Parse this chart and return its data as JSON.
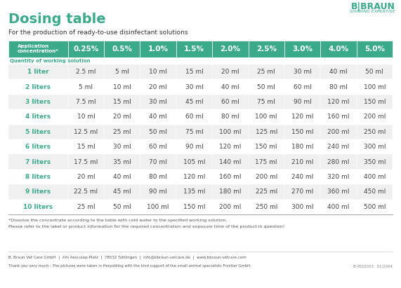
{
  "title": "Dosing table",
  "subtitle": "For the production of ready-to-use disinfectant solutions",
  "brand_name": "B|BRAUN",
  "brand_tagline": "SHARING EXPERTISE",
  "header_row": [
    "Application\nconcentration*",
    "0.25%",
    "0.5%",
    "1.0%",
    "1.5%",
    "2.0%",
    "2.5%",
    "3.0%",
    "4.0%",
    "5.0%"
  ],
  "subheader": "Quantity of working solution",
  "row_labels": [
    "1 liter",
    "2 liters",
    "3 liters",
    "4 liters",
    "5 liters",
    "6 liters",
    "7 liters",
    "8 liters",
    "9 liters",
    "10 liters"
  ],
  "table_data": [
    [
      "2.5 ml",
      "5 ml",
      "10 ml",
      "15 ml",
      "20 ml",
      "25 ml",
      "30 ml",
      "40 ml",
      "50 ml"
    ],
    [
      "5 ml",
      "10 ml",
      "20 ml",
      "30 ml",
      "40 ml",
      "50 ml",
      "60 ml",
      "80 ml",
      "100 ml"
    ],
    [
      "7.5 ml",
      "15 ml",
      "30 ml",
      "45 ml",
      "60 ml",
      "75 ml",
      "90 ml",
      "120 ml",
      "150 ml"
    ],
    [
      "10 ml",
      "20 ml",
      "40 ml",
      "60 ml",
      "80 ml",
      "100 ml",
      "120 ml",
      "160 ml",
      "200 ml"
    ],
    [
      "12.5 ml",
      "25 ml",
      "50 ml",
      "75 ml",
      "100 ml",
      "125 ml",
      "150 ml",
      "200 ml",
      "250 ml"
    ],
    [
      "15 ml",
      "30 ml",
      "60 ml",
      "90 ml",
      "120 ml",
      "150 ml",
      "180 ml",
      "240 ml",
      "300 ml"
    ],
    [
      "17.5 ml",
      "35 ml",
      "70 ml",
      "105 ml",
      "140 ml",
      "175 ml",
      "210 ml",
      "280 ml",
      "350 ml"
    ],
    [
      "20 ml",
      "40 ml",
      "80 ml",
      "120 ml",
      "160 ml",
      "200 ml",
      "240 ml",
      "320 ml",
      "400 ml"
    ],
    [
      "22.5 ml",
      "45 ml",
      "90 ml",
      "135 ml",
      "180 ml",
      "225 ml",
      "270 ml",
      "360 ml",
      "450 ml"
    ],
    [
      "25 ml",
      "50 ml",
      "100 ml",
      "150 ml",
      "200 ml",
      "250 ml",
      "300 ml",
      "400 ml",
      "500 ml"
    ]
  ],
  "footnote1": "*Dissolve the concentrate according to the table with cold water to the specified working solution.",
  "footnote2": "Please refer to the label or product information for the required concentration and exposure time of the product in question!",
  "footer_company": "B. Braun Vet Care GmbH  |  Am Aesculap-Platz  |  78532 Tuttlingen  |  info@bbraun-vetcare.de  |  www.bbraun-vetcare.com",
  "footer_thanks": "Thank you very much - The pictures were taken in Herpolding with the kind support of the small animal specialists Frontier GmbH.",
  "footer_code": "B-VE22003   01/2024",
  "header_bg_color": "#3aaa8a",
  "header_text_color": "#ffffff",
  "row_label_color_odd": "#3aaa8a",
  "row_label_color_even": "#5cbfa0",
  "row_bg_even": "#f0f0f0",
  "row_bg_odd": "#ffffff",
  "cell_text_color": "#444444",
  "title_color": "#3aaa8a",
  "bg_color": "#ffffff",
  "subheader_color": "#3aaa8a"
}
